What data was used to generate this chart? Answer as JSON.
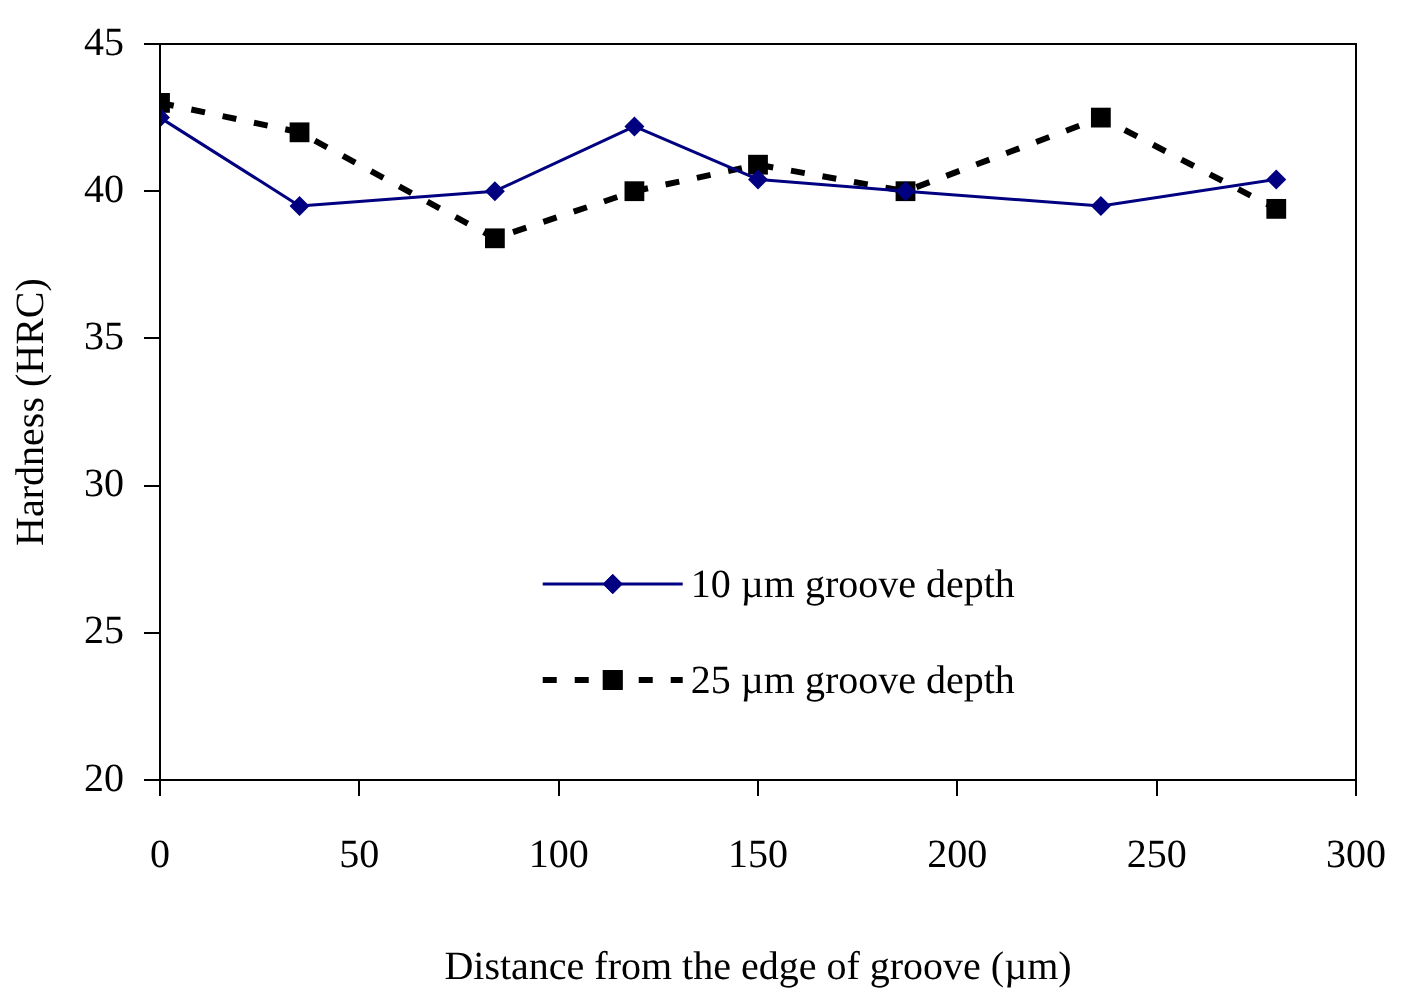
{
  "chart_data": {
    "type": "line",
    "xlabel": "Distance from the edge of groove (µm)",
    "ylabel": "Hardness (HRC)",
    "x": [
      0,
      35,
      84,
      119,
      150,
      187,
      236,
      280
    ],
    "series": [
      {
        "name": "10 µm groove depth",
        "color": "#000080",
        "marker": "diamond",
        "line_style": "solid",
        "values": [
          42.5,
          39.5,
          40,
          42.2,
          40.4,
          40,
          39.5,
          40.4
        ]
      },
      {
        "name": "25 µm groove depth",
        "color": "#000000",
        "marker": "square",
        "line_style": "dashed",
        "values": [
          43,
          42,
          38.4,
          40,
          40.9,
          40,
          42.5,
          39.4
        ]
      }
    ],
    "xlim": [
      0,
      300
    ],
    "xticks": [
      0,
      50,
      100,
      150,
      200,
      250,
      300
    ],
    "ylim": [
      20,
      45
    ],
    "yticks": [
      20,
      25,
      30,
      35,
      40,
      45
    ],
    "grid": false,
    "legend": "bottom"
  }
}
